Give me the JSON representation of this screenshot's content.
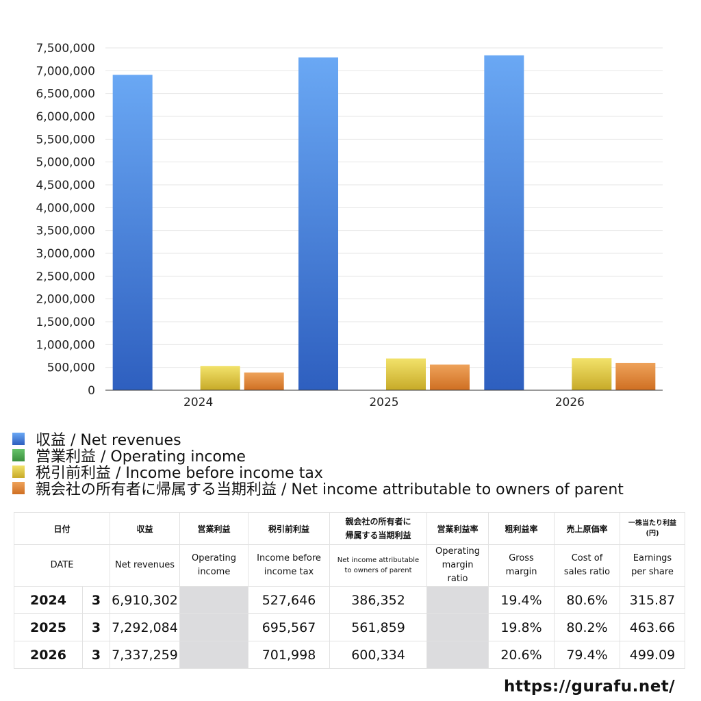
{
  "chart_data": {
    "type": "bar",
    "categories": [
      "2024",
      "2025",
      "2026"
    ],
    "ylim": [
      0,
      7500000
    ],
    "ytick_step": 500000,
    "yticks": [
      "0",
      "500,000",
      "1,000,000",
      "1,500,000",
      "2,000,000",
      "2,500,000",
      "3,000,000",
      "3,500,000",
      "4,000,000",
      "4,500,000",
      "5,000,000",
      "5,500,000",
      "6,000,000",
      "6,500,000",
      "7,000,000",
      "7,500,000"
    ],
    "grid": true,
    "legend_position": "bottom",
    "series": [
      {
        "name": "収益 / Net revenues",
        "values": [
          6910302,
          7292084,
          7337259
        ],
        "color": "#4a86e0",
        "color_top": "#6aa8f4",
        "color_bottom": "#2e5fbf"
      },
      {
        "name": "営業利益 / Operating income",
        "values": [
          null,
          null,
          null
        ],
        "color": "#4caf50",
        "color_top": "#66c36a",
        "color_bottom": "#3a8f3e"
      },
      {
        "name": "税引前利益 / Income before income tax",
        "values": [
          527646,
          695567,
          701998
        ],
        "color": "#e3c93e",
        "color_top": "#f2e26a",
        "color_bottom": "#c7aa28"
      },
      {
        "name": "親会社の所有者に帰属する当期利益 / Net income attributable to owners of parent",
        "values": [
          386352,
          561859,
          600334
        ],
        "color": "#e08a3a",
        "color_top": "#eea25a",
        "color_bottom": "#cf6f22"
      }
    ]
  },
  "table": {
    "headers_jp": [
      "日付",
      "収益",
      "営業利益",
      "税引前利益",
      "親会社の所有者に\n帰属する当期利益",
      "営業利益率",
      "粗利益率",
      "売上原価率",
      "一株当たり利益\n(円)"
    ],
    "headers_en": [
      "DATE",
      "Net revenues",
      "Operating\nincome",
      "Income before\nincome tax",
      "Net income attributable\nto owners of parent",
      "Operating\nmargin\nratio",
      "Gross\nmargin",
      "Cost of\nsales ratio",
      "Earnings\nper share"
    ],
    "rows": [
      {
        "year": "2024",
        "month": "3",
        "revenue": "6,910,302",
        "operating_income": "",
        "pretax": "527,646",
        "net_income": "386,352",
        "op_margin": "",
        "gross_margin": "19.4%",
        "cost_ratio": "80.6%",
        "eps": "315.87"
      },
      {
        "year": "2025",
        "month": "3",
        "revenue": "7,292,084",
        "operating_income": "",
        "pretax": "695,567",
        "net_income": "561,859",
        "op_margin": "",
        "gross_margin": "19.8%",
        "cost_ratio": "80.2%",
        "eps": "463.66"
      },
      {
        "year": "2026",
        "month": "3",
        "revenue": "7,337,259",
        "operating_income": "",
        "pretax": "701,998",
        "net_income": "600,334",
        "op_margin": "",
        "gross_margin": "20.6%",
        "cost_ratio": "79.4%",
        "eps": "499.09"
      }
    ]
  },
  "footer": {
    "site": "https://gurafu.net/"
  }
}
